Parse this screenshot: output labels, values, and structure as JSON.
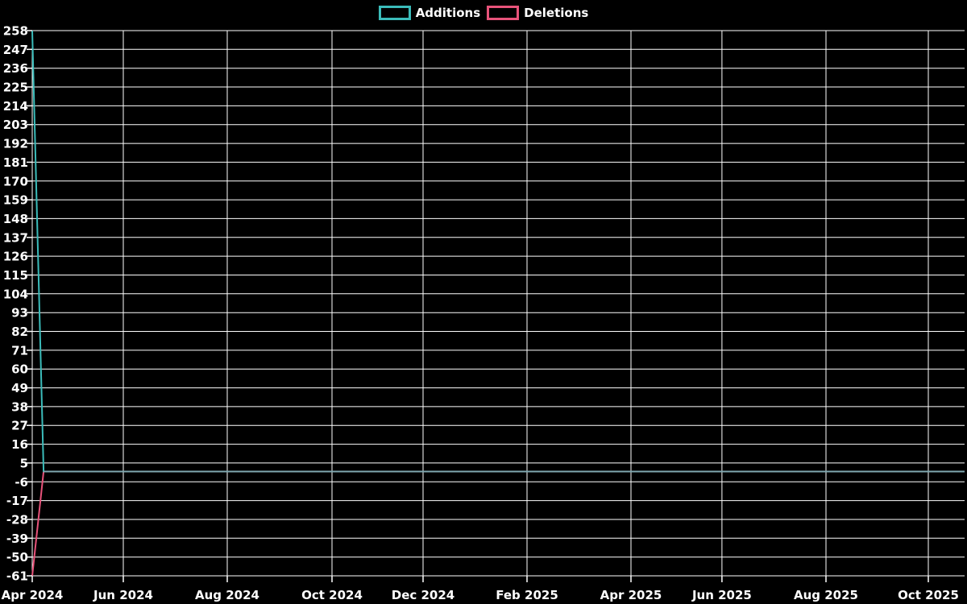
{
  "legend": {
    "items": [
      {
        "label": "Additions",
        "color": "#3bbcba"
      },
      {
        "label": "Deletions",
        "color": "#e8537a"
      }
    ]
  },
  "chart_data": {
    "type": "line",
    "title": "",
    "xlabel": "",
    "ylabel": "",
    "background_color": "#000000",
    "grid": true,
    "grid_color": "#ffffff",
    "text_color": "#ffffff",
    "legend_position": "top-center",
    "x_range": [
      "2024-04-01",
      "2025-10-28"
    ],
    "y_axis": {
      "min": -61,
      "max": 258,
      "step": 11,
      "tick_labels": [
        258,
        247,
        236,
        225,
        214,
        203,
        192,
        181,
        170,
        159,
        148,
        137,
        126,
        115,
        104,
        93,
        82,
        71,
        60,
        49,
        38,
        27,
        16,
        5,
        -6,
        -17,
        -28,
        -39,
        -50,
        -61
      ]
    },
    "x_axis": {
      "ticks": [
        {
          "label": "Apr 2024",
          "f": 0.0
        },
        {
          "label": "Jun 2024",
          "f": 0.0977
        },
        {
          "label": "Aug 2024",
          "f": 0.2092
        },
        {
          "label": "Oct 2024",
          "f": 0.3215
        },
        {
          "label": "Dec 2024",
          "f": 0.4192
        },
        {
          "label": "Feb 2025",
          "f": 0.5307
        },
        {
          "label": "Apr 2025",
          "f": 0.6422
        },
        {
          "label": "Jun 2025",
          "f": 0.7398
        },
        {
          "label": "Aug 2025",
          "f": 0.8513
        },
        {
          "label": "Oct 2025",
          "f": 0.9611
        }
      ]
    },
    "series": [
      {
        "name": "Additions",
        "color": "#3bbcba",
        "points": [
          [
            "2024-04-01",
            258
          ],
          [
            "2024-04-08",
            0
          ],
          [
            "2025-10-28",
            0
          ]
        ]
      },
      {
        "name": "Deletions",
        "color": "#e8537a",
        "points": [
          [
            "2024-04-01",
            -61
          ],
          [
            "2024-04-08",
            0
          ],
          [
            "2025-10-28",
            0
          ]
        ]
      }
    ],
    "overlap_zero_segment": {
      "comment_color_of_both_series_overlapping_at_zero": "",
      "color": "#7fa8b0",
      "from": "2024-04-08",
      "to": "2025-10-28",
      "value": 0
    }
  }
}
